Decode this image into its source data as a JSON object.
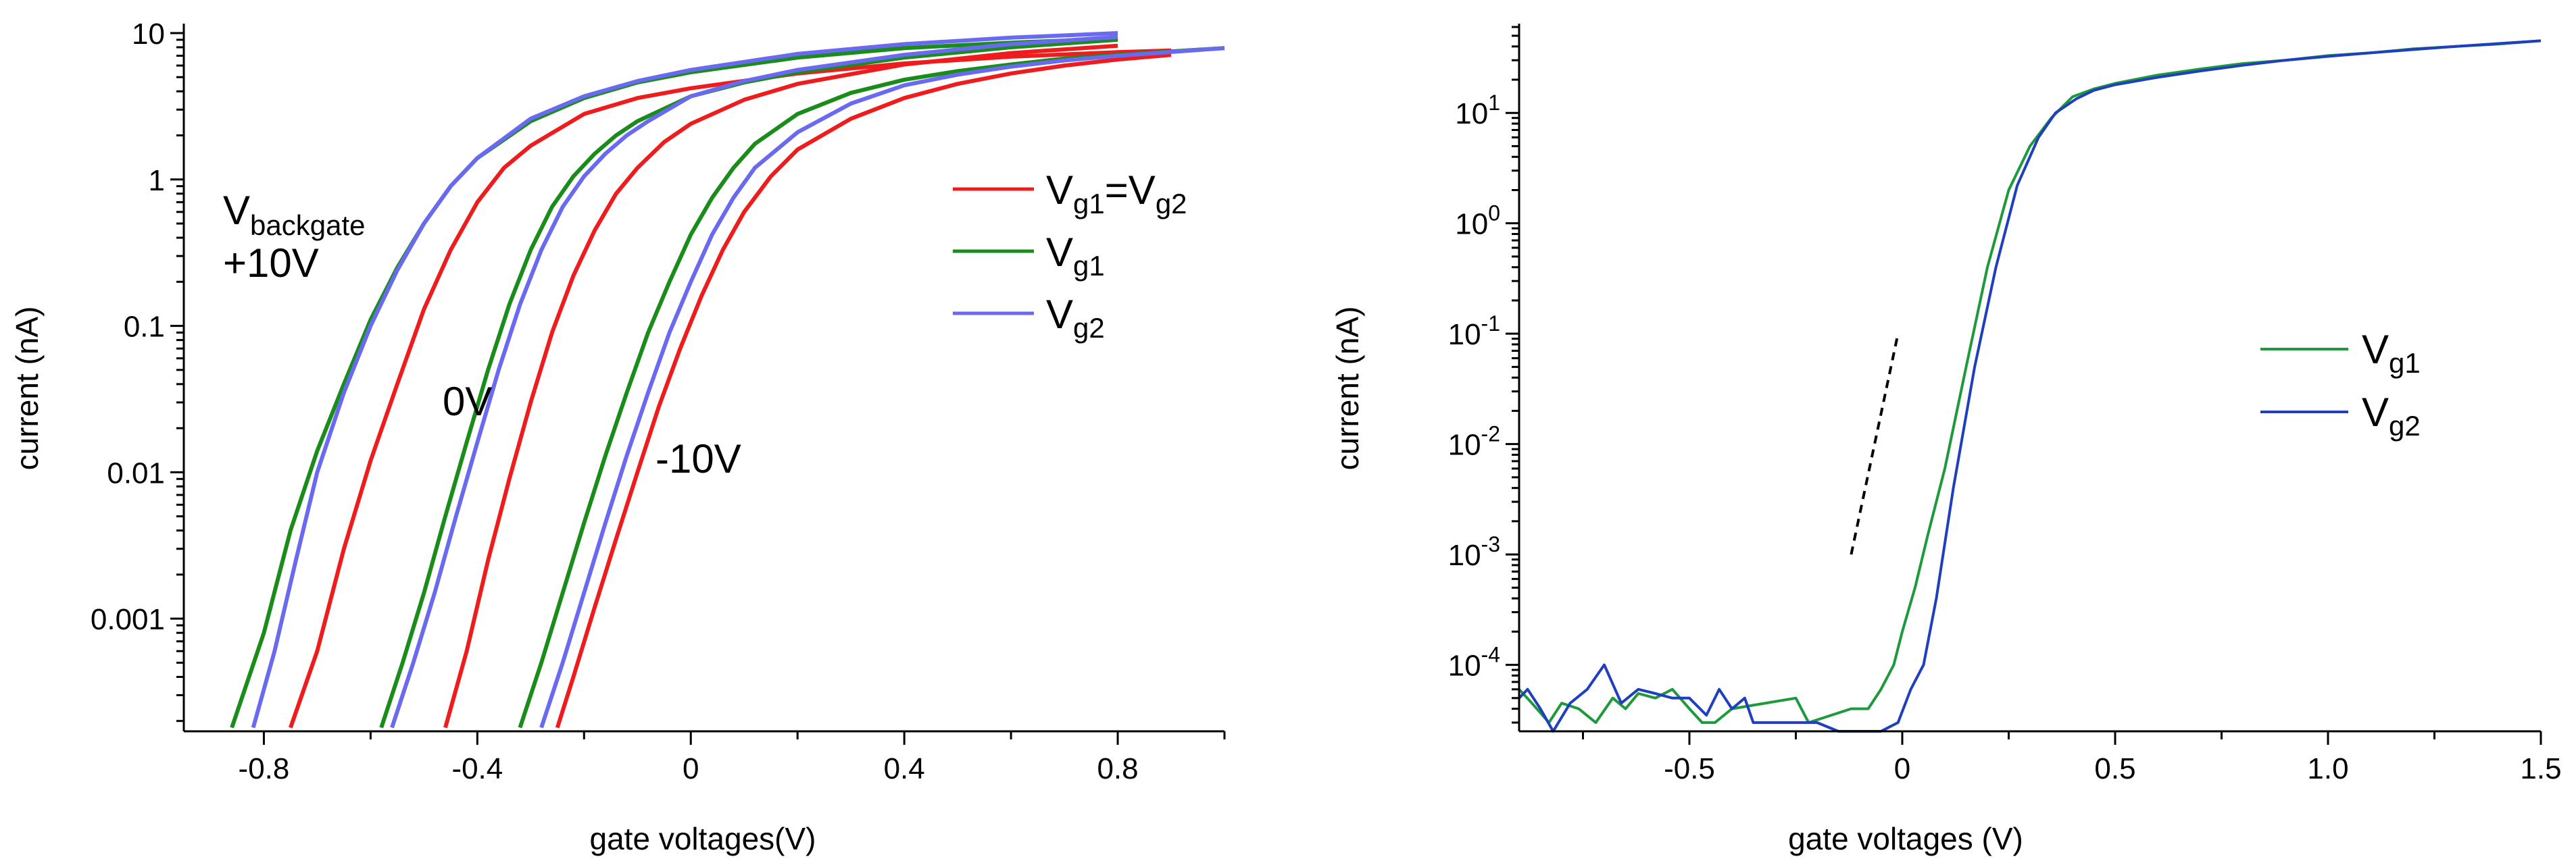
{
  "colors": {
    "red": "#ee1c1c",
    "green": "#1a8c1a",
    "violet": "#6a6af0",
    "green_right": "#1d9a3c",
    "blue_right": "#1f3fbf",
    "dashed": "#000000"
  },
  "chart_data": [
    {
      "type": "line",
      "yscale": "log",
      "xlabel": "gate voltages(V)",
      "ylabel": "current (nA)",
      "xlim": [
        -0.95,
        1.0
      ],
      "ylim": [
        0.00017,
        11
      ],
      "xticks": [
        -0.8,
        -0.4,
        0,
        0.4,
        0.8
      ],
      "xtick_labels": [
        "-0.8",
        "-0.4",
        "0",
        "0.4",
        "0.8"
      ],
      "yticks": [
        0.001,
        0.01,
        0.1,
        1,
        10
      ],
      "ytick_labels": [
        "0.001",
        "0.01",
        "0.1",
        "1",
        "10"
      ],
      "legend": {
        "position": "top-right",
        "entries": [
          {
            "key": "vg1_eq_vg2",
            "main": "V",
            "sub1": "g1",
            "mid": "=V",
            "sub2": "g2",
            "color": "red"
          },
          {
            "key": "vg1",
            "main": "V",
            "sub1": "g1",
            "color": "green"
          },
          {
            "key": "vg2",
            "main": "V",
            "sub1": "g2",
            "color": "violet"
          }
        ]
      },
      "annotations": [
        {
          "key": "backgate_title",
          "main": "V",
          "sub": "backgate"
        },
        {
          "key": "bg_plus10",
          "text": "+10V"
        },
        {
          "key": "bg_0",
          "text": "0V"
        },
        {
          "key": "bg_minus10",
          "text": "-10V"
        }
      ],
      "series": [
        {
          "group": "+10V",
          "name": "Vg1=Vg2",
          "color": "red",
          "x": [
            -0.75,
            -0.7,
            -0.65,
            -0.6,
            -0.55,
            -0.5,
            -0.45,
            -0.4,
            -0.35,
            -0.3,
            -0.2,
            -0.1,
            0.0,
            0.2,
            0.4,
            0.6,
            0.8,
            0.9
          ],
          "y": [
            0.00018,
            0.0006,
            0.003,
            0.012,
            0.04,
            0.13,
            0.33,
            0.7,
            1.2,
            1.7,
            2.8,
            3.6,
            4.2,
            5.3,
            6.2,
            6.9,
            7.4,
            7.6
          ]
        },
        {
          "group": "+10V",
          "name": "Vg1",
          "color": "green",
          "x": [
            -0.86,
            -0.8,
            -0.75,
            -0.7,
            -0.65,
            -0.6,
            -0.55,
            -0.5,
            -0.45,
            -0.4,
            -0.3,
            -0.2,
            -0.1,
            0.0,
            0.2,
            0.4,
            0.6,
            0.8
          ],
          "y": [
            0.00018,
            0.0008,
            0.004,
            0.014,
            0.04,
            0.11,
            0.25,
            0.5,
            0.9,
            1.4,
            2.5,
            3.6,
            4.6,
            5.4,
            6.8,
            7.9,
            8.6,
            9.2
          ]
        },
        {
          "group": "+10V",
          "name": "Vg2",
          "color": "violet",
          "x": [
            -0.82,
            -0.78,
            -0.74,
            -0.7,
            -0.65,
            -0.6,
            -0.55,
            -0.5,
            -0.45,
            -0.4,
            -0.3,
            -0.2,
            -0.1,
            0.0,
            0.2,
            0.4,
            0.6,
            0.8
          ],
          "y": [
            0.00018,
            0.0006,
            0.0025,
            0.01,
            0.035,
            0.1,
            0.24,
            0.5,
            0.9,
            1.4,
            2.6,
            3.7,
            4.7,
            5.6,
            7.2,
            8.4,
            9.3,
            10.0
          ]
        },
        {
          "group": "0V",
          "name": "Vg1=Vg2",
          "color": "red",
          "x": [
            -0.46,
            -0.42,
            -0.38,
            -0.34,
            -0.3,
            -0.26,
            -0.22,
            -0.18,
            -0.14,
            -0.1,
            -0.05,
            0.0,
            0.1,
            0.2,
            0.4,
            0.6,
            0.8
          ],
          "y": [
            0.00018,
            0.0006,
            0.0025,
            0.009,
            0.03,
            0.09,
            0.22,
            0.45,
            0.8,
            1.2,
            1.8,
            2.4,
            3.5,
            4.5,
            6.1,
            7.3,
            8.2
          ]
        },
        {
          "group": "0V",
          "name": "Vg1",
          "color": "green",
          "x": [
            -0.58,
            -0.54,
            -0.5,
            -0.46,
            -0.42,
            -0.38,
            -0.34,
            -0.3,
            -0.26,
            -0.22,
            -0.18,
            -0.14,
            -0.1,
            0.0,
            0.1,
            0.2,
            0.4,
            0.6,
            0.8
          ],
          "y": [
            0.00018,
            0.0005,
            0.0015,
            0.005,
            0.016,
            0.05,
            0.14,
            0.33,
            0.65,
            1.05,
            1.5,
            2.0,
            2.5,
            3.7,
            4.6,
            5.4,
            6.8,
            8.0,
            9.0
          ]
        },
        {
          "group": "0V",
          "name": "Vg2",
          "color": "violet",
          "x": [
            -0.56,
            -0.52,
            -0.48,
            -0.44,
            -0.4,
            -0.36,
            -0.32,
            -0.28,
            -0.24,
            -0.2,
            -0.16,
            -0.12,
            -0.08,
            0.0,
            0.1,
            0.2,
            0.4,
            0.6,
            0.8
          ],
          "y": [
            0.00018,
            0.0005,
            0.0015,
            0.005,
            0.016,
            0.05,
            0.14,
            0.33,
            0.65,
            1.05,
            1.5,
            2.0,
            2.5,
            3.7,
            4.7,
            5.6,
            7.1,
            8.4,
            9.4
          ]
        },
        {
          "group": "-10V",
          "name": "Vg1=Vg2",
          "color": "red",
          "x": [
            -0.25,
            -0.22,
            -0.18,
            -0.14,
            -0.1,
            -0.06,
            -0.02,
            0.02,
            0.06,
            0.1,
            0.15,
            0.2,
            0.3,
            0.4,
            0.5,
            0.6,
            0.7,
            0.8,
            0.9
          ],
          "y": [
            0.00018,
            0.0004,
            0.0012,
            0.0035,
            0.01,
            0.028,
            0.07,
            0.16,
            0.33,
            0.6,
            1.05,
            1.6,
            2.6,
            3.6,
            4.5,
            5.3,
            6.0,
            6.6,
            7.1
          ]
        },
        {
          "group": "-10V",
          "name": "Vg1",
          "color": "green",
          "x": [
            -0.32,
            -0.28,
            -0.24,
            -0.2,
            -0.16,
            -0.12,
            -0.08,
            -0.04,
            0.0,
            0.04,
            0.08,
            0.12,
            0.2,
            0.3,
            0.4,
            0.5,
            0.6,
            0.7,
            0.8,
            1.0
          ],
          "y": [
            0.00018,
            0.0005,
            0.0015,
            0.0045,
            0.013,
            0.035,
            0.09,
            0.2,
            0.42,
            0.75,
            1.2,
            1.75,
            2.8,
            3.9,
            4.8,
            5.5,
            6.1,
            6.7,
            7.1,
            7.9
          ]
        },
        {
          "group": "-10V",
          "name": "Vg2",
          "color": "violet",
          "x": [
            -0.28,
            -0.24,
            -0.2,
            -0.16,
            -0.12,
            -0.08,
            -0.04,
            0.0,
            0.04,
            0.08,
            0.12,
            0.2,
            0.3,
            0.4,
            0.5,
            0.6,
            0.7,
            0.8,
            1.0
          ],
          "y": [
            0.00018,
            0.0005,
            0.0015,
            0.0045,
            0.013,
            0.035,
            0.09,
            0.2,
            0.42,
            0.75,
            1.2,
            2.1,
            3.3,
            4.4,
            5.2,
            5.9,
            6.5,
            7.0,
            7.9
          ]
        }
      ]
    },
    {
      "type": "line",
      "yscale": "log",
      "xlabel": "gate voltages (V)",
      "ylabel": "current (nA)",
      "xlim": [
        -0.9,
        1.5
      ],
      "ylim": [
        2.5e-05,
        60
      ],
      "xticks": [
        -0.5,
        0,
        0.5,
        1.0,
        1.5
      ],
      "xtick_labels": [
        "-0.5",
        "0",
        "0.5",
        "1.0",
        "1.5"
      ],
      "yticks": [
        0.0001,
        0.001,
        0.01,
        0.1,
        1,
        10
      ],
      "ytick_labels": [
        {
          "base": "10",
          "exp": "-4"
        },
        {
          "base": "10",
          "exp": "-3"
        },
        {
          "base": "10",
          "exp": "-2"
        },
        {
          "base": "10",
          "exp": "-1"
        },
        {
          "base": "10",
          "exp": "0"
        },
        {
          "base": "10",
          "exp": "1"
        }
      ],
      "legend": {
        "position": "right",
        "entries": [
          {
            "key": "vg1",
            "main": "V",
            "sub1": "g1",
            "color": "green_right"
          },
          {
            "key": "vg2",
            "main": "V",
            "sub1": "g2",
            "color": "blue_right"
          }
        ]
      },
      "dashed_line": {
        "x": [
          -0.12,
          -0.01
        ],
        "y": [
          0.001,
          0.1
        ]
      },
      "series": [
        {
          "name": "Vg1",
          "color": "green_right",
          "x": [
            -0.9,
            -0.87,
            -0.83,
            -0.8,
            -0.76,
            -0.72,
            -0.68,
            -0.65,
            -0.62,
            -0.58,
            -0.54,
            -0.5,
            -0.47,
            -0.44,
            -0.4,
            -0.25,
            -0.22,
            -0.12,
            -0.08,
            -0.05,
            -0.02,
            0.0,
            0.03,
            0.06,
            0.1,
            0.15,
            0.2,
            0.25,
            0.3,
            0.35,
            0.4,
            0.45,
            0.5,
            0.6,
            0.7,
            0.8,
            0.9,
            1.0,
            1.1,
            1.2,
            1.3,
            1.4,
            1.5
          ],
          "y": [
            6e-05,
            4.5e-05,
            3e-05,
            4.5e-05,
            4e-05,
            3e-05,
            5e-05,
            4e-05,
            5.5e-05,
            5e-05,
            6e-05,
            4e-05,
            3e-05,
            3e-05,
            4e-05,
            5e-05,
            3e-05,
            4e-05,
            4e-05,
            6e-05,
            0.0001,
            0.0002,
            0.0005,
            0.0015,
            0.006,
            0.05,
            0.4,
            2.0,
            5.0,
            9.0,
            14.0,
            16.5,
            18.5,
            22.0,
            25.0,
            28.0,
            30.0,
            33.0,
            35.0,
            38.0,
            40.0,
            42.0,
            45.0
          ]
        },
        {
          "name": "Vg2",
          "color": "blue_right",
          "x": [
            -0.9,
            -0.88,
            -0.85,
            -0.82,
            -0.78,
            -0.74,
            -0.7,
            -0.66,
            -0.62,
            -0.58,
            -0.54,
            -0.5,
            -0.46,
            -0.43,
            -0.4,
            -0.37,
            -0.35,
            -0.2,
            -0.15,
            -0.1,
            -0.05,
            -0.01,
            0.02,
            0.05,
            0.08,
            0.12,
            0.17,
            0.22,
            0.27,
            0.32,
            0.36,
            0.41,
            0.45,
            0.5,
            0.6,
            0.7,
            0.8,
            0.9,
            1.0,
            1.1,
            1.2,
            1.3,
            1.4,
            1.5
          ],
          "y": [
            5e-05,
            6e-05,
            4e-05,
            2.5e-05,
            4.5e-05,
            6e-05,
            0.0001,
            4.5e-05,
            6e-05,
            5.5e-05,
            5e-05,
            5e-05,
            3.5e-05,
            6e-05,
            4e-05,
            5e-05,
            3e-05,
            3e-05,
            2.5e-05,
            2.5e-05,
            2.5e-05,
            3e-05,
            6e-05,
            0.0001,
            0.0004,
            0.004,
            0.05,
            0.4,
            2.2,
            6.0,
            10.0,
            13.5,
            16.0,
            18.0,
            21.0,
            24.0,
            27.0,
            30.0,
            32.5,
            35.0,
            37.5,
            40.0,
            42.5,
            45.0
          ]
        }
      ]
    }
  ]
}
